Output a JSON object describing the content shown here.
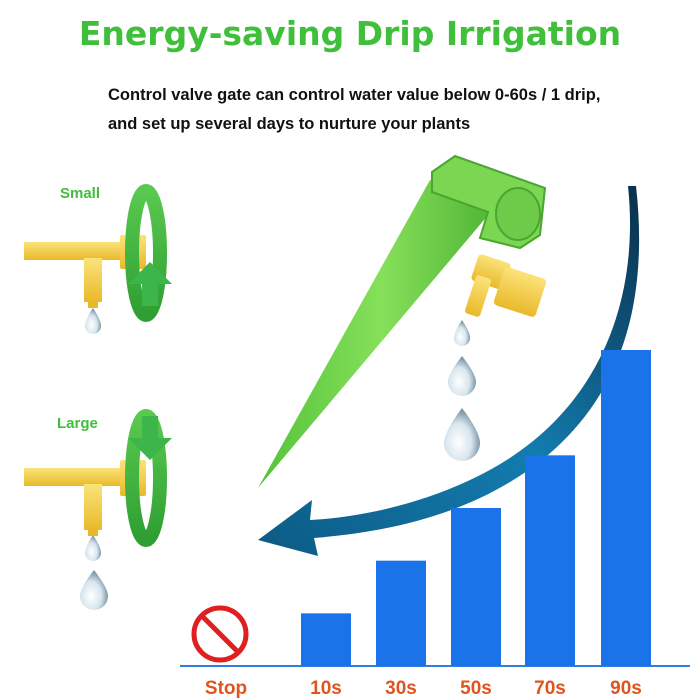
{
  "title": "Energy-saving Drip Irrigation",
  "description": {
    "line1": "Control valve gate can control water value below 0-60s / 1 drip,",
    "line2": "and set up several days to nurture your plants"
  },
  "adjustments": {
    "small_label": "Small",
    "large_label": "Large"
  },
  "colors": {
    "title_green": "#3fbf3a",
    "bar_blue": "#1a73e8",
    "label_orange": "#e2541f",
    "stop_red": "#e02020",
    "spike_green": "#6dd04a",
    "valve_yellow": "#f7d74a",
    "arrow_teal": "#0f5f86"
  },
  "icons": [
    "stop-icon",
    "rotate-arrow-icon",
    "water-drop-icon",
    "curved-arrow-icon"
  ],
  "chart_data": {
    "type": "bar",
    "categories": [
      "Stop",
      "10s",
      "30s",
      "50s",
      "70s",
      "90s"
    ],
    "values": [
      0,
      1,
      2,
      3,
      4,
      6
    ],
    "title": "",
    "xlabel": "",
    "ylabel": "",
    "grid": false
  }
}
